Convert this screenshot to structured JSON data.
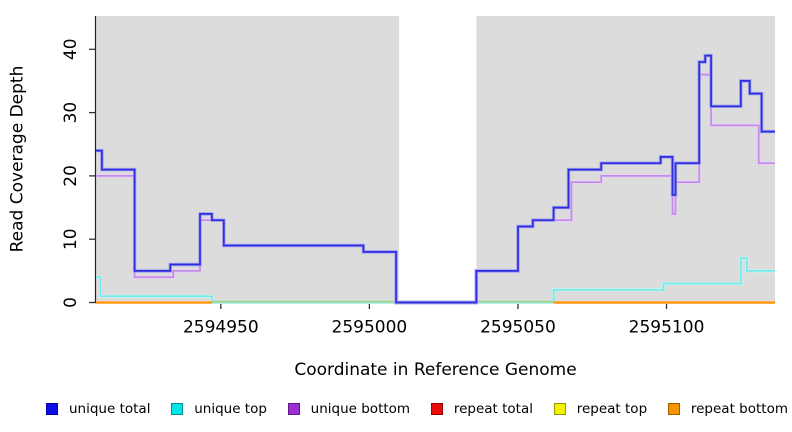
{
  "chart_data": {
    "type": "line",
    "subtype": "step-coverage-plot",
    "title": "",
    "xlabel": "Coordinate in Reference Genome",
    "ylabel": "Read Coverage Depth",
    "x_range": [
      2594908,
      2595136.5
    ],
    "y_range": [
      0,
      45
    ],
    "x_ticks": [
      2594950,
      2595000,
      2595050,
      2595100
    ],
    "y_ticks": [
      0,
      10,
      20,
      30,
      40
    ],
    "grid": "off",
    "plot_bg": "#dcdcdc",
    "axis_color": "#222222",
    "masked_region": {
      "x_start": 2595010,
      "x_end": 2595036,
      "color": "#ffffff"
    },
    "legend_position": "bottom",
    "legend": [
      {
        "label": "unique total",
        "fill": "#0d0de8",
        "border": "#0000a0"
      },
      {
        "label": "unique top",
        "fill": "#00e5e5",
        "border": "#008f8f"
      },
      {
        "label": "unique bottom",
        "fill": "#9a30d2",
        "border": "#5f1a86"
      },
      {
        "label": "repeat total",
        "fill": "#ea0b0b",
        "border": "#8f0000"
      },
      {
        "label": "repeat top",
        "fill": "#f2f200",
        "border": "#9a9a00"
      },
      {
        "label": "repeat bottom",
        "fill": "#f79400",
        "border": "#9a5c00"
      }
    ],
    "series": [
      {
        "name": "unique top",
        "key": "unique-top",
        "color": "#72e8e8",
        "halo": "#c9f6f6",
        "points": [
          [
            2594908,
            4
          ],
          [
            2594909.5,
            1
          ],
          [
            2594947,
            0
          ],
          [
            2595062,
            2
          ],
          [
            2595099,
            3
          ],
          [
            2595125,
            7
          ],
          [
            2595127,
            5
          ],
          [
            2595136.5,
            5
          ]
        ]
      },
      {
        "name": "unique top / repeat top overlap at zero",
        "key": "zero-overlap",
        "color": "#8fd08f",
        "halo": "#d2ebd2",
        "points": [
          [
            2594947,
            0
          ],
          [
            2595062,
            0
          ]
        ]
      },
      {
        "name": "repeat bottom",
        "key": "repeat-bottom",
        "color": "#ff9200",
        "halo": "#ffc987",
        "paths": [
          [
            [
              2594908,
              0
            ],
            [
              2594947,
              0
            ]
          ],
          [
            [
              2595062,
              0
            ],
            [
              2595136.5,
              0
            ]
          ]
        ]
      },
      {
        "name": "unique bottom",
        "key": "unique-bottom",
        "color": "#c38ce4",
        "halo": "#e6d2f3",
        "points": [
          [
            2594908,
            20
          ],
          [
            2594921,
            4
          ],
          [
            2594934,
            5
          ],
          [
            2594943,
            13
          ],
          [
            2594951,
            9
          ],
          [
            2594998,
            8
          ],
          [
            2595009,
            0
          ],
          [
            2595036,
            5
          ],
          [
            2595050,
            12
          ],
          [
            2595055,
            13
          ],
          [
            2595068,
            19
          ],
          [
            2595078,
            20
          ],
          [
            2595102,
            14
          ],
          [
            2595103,
            19
          ],
          [
            2595111,
            36
          ],
          [
            2595115,
            28
          ],
          [
            2595131,
            22
          ],
          [
            2595136.5,
            22
          ]
        ]
      },
      {
        "name": "unique total",
        "key": "unique-total",
        "color": "#2e2ee0",
        "halo": "#9f9fec",
        "points": [
          [
            2594908,
            24
          ],
          [
            2594910,
            21
          ],
          [
            2594921,
            5
          ],
          [
            2594933,
            6
          ],
          [
            2594943,
            14
          ],
          [
            2594947,
            13
          ],
          [
            2594951,
            9
          ],
          [
            2594998,
            8
          ],
          [
            2595009,
            0
          ],
          [
            2595036,
            5
          ],
          [
            2595050,
            12
          ],
          [
            2595055,
            13
          ],
          [
            2595062,
            15
          ],
          [
            2595067,
            21
          ],
          [
            2595078,
            22
          ],
          [
            2595098,
            23
          ],
          [
            2595102,
            17
          ],
          [
            2595103,
            22
          ],
          [
            2595111,
            38
          ],
          [
            2595113,
            39
          ],
          [
            2595115,
            31
          ],
          [
            2595125,
            35
          ],
          [
            2595128,
            33
          ],
          [
            2595132,
            27
          ],
          [
            2595136.5,
            27
          ]
        ]
      }
    ]
  }
}
